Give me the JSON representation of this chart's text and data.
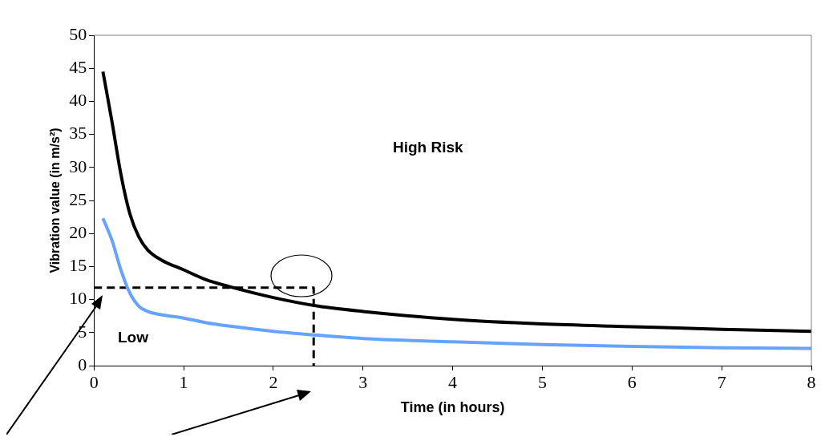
{
  "chart_data": {
    "type": "line",
    "xlabel": "Time (in hours)",
    "ylabel": "Vibration value (in m/s²)",
    "xlim": [
      0,
      8
    ],
    "xticks": [
      0,
      1,
      2,
      3,
      4,
      5,
      6,
      7,
      8
    ],
    "ylim": [
      0,
      50
    ],
    "yticks": [
      0,
      5,
      10,
      15,
      20,
      25,
      30,
      35,
      40,
      45,
      50
    ],
    "grid": false,
    "legend": false,
    "marker": "none",
    "series": [
      {
        "color": "#000000",
        "x": [
          0.1,
          0.2,
          0.3,
          0.4,
          0.5,
          0.6,
          0.75,
          1,
          1.25,
          1.5,
          2,
          2.5,
          3,
          4,
          5,
          6,
          7,
          8
        ],
        "values": [
          44.5,
          37,
          29,
          23,
          19.5,
          17.5,
          16,
          14.5,
          13,
          12,
          10.3,
          9,
          8.2,
          7,
          6.3,
          5.9,
          5.5,
          5.2
        ]
      },
      {
        "color": "#66a3ff",
        "x": [
          0.1,
          0.2,
          0.3,
          0.4,
          0.5,
          0.6,
          0.75,
          1,
          1.25,
          1.5,
          2,
          2.5,
          3,
          4,
          5,
          6,
          7,
          8
        ],
        "values": [
          22.3,
          19,
          14.5,
          11,
          9,
          8.2,
          7.7,
          7.2,
          6.5,
          6,
          5.2,
          4.6,
          4.1,
          3.6,
          3.2,
          2.9,
          2.7,
          2.6
        ]
      },
      {
        "color": "#000000",
        "line_style": "dashed",
        "x": [
          0,
          2.45,
          2.45
        ],
        "values": [
          11.8,
          11.8,
          0
        ]
      }
    ],
    "annotations": [
      "High Risk",
      "Low"
    ]
  }
}
